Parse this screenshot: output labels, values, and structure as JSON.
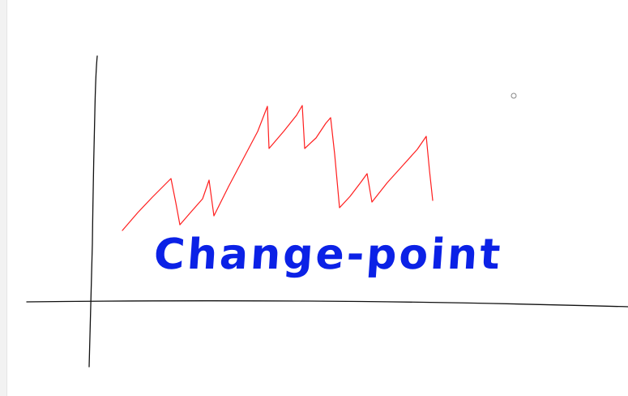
{
  "canvas": {
    "background_color": "#ffffff",
    "side_panel_color": "#f2f2f2"
  },
  "drawing": {
    "label": "Change-point",
    "label_color": "#0b21e6",
    "signal_color": "#ff1e1e",
    "axis_color": "#111111",
    "cursor_marker": "circle-outline"
  }
}
